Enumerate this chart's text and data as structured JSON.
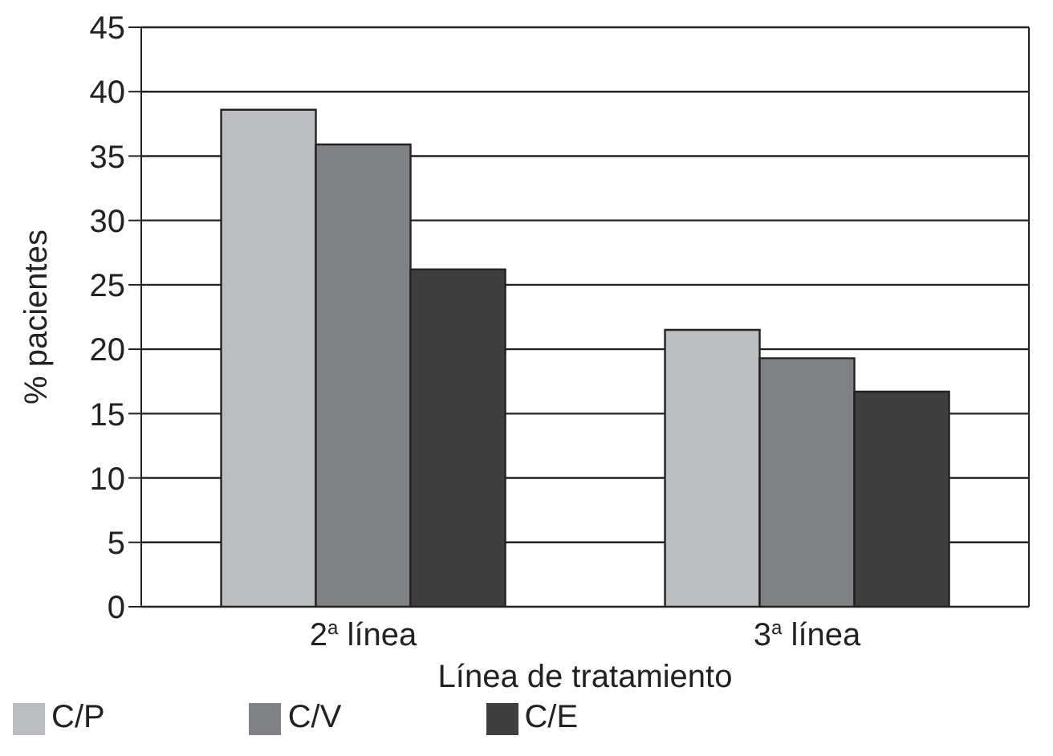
{
  "chart_data": {
    "type": "bar",
    "xlabel": "Línea de tratamiento",
    "ylabel": "% pacientes",
    "categories": [
      "2$^{a}$ línea",
      "3$^{a}$ línea"
    ],
    "series": [
      {
        "name": "C/P",
        "color": "#bcbdc1",
        "values": [
          38.6,
          21.5
        ]
      },
      {
        "name": "C/V",
        "color": "#808185",
        "values": [
          35.9,
          19.3
        ]
      },
      {
        "name": "C/E",
        "color": "#3f3f3f",
        "values": [
          26.2,
          16.7
        ]
      }
    ],
    "ylim": [
      0,
      45
    ],
    "yticks": [
      0,
      5,
      10,
      15,
      20,
      25,
      30,
      35,
      40,
      45
    ],
    "grid": "y",
    "legend": "bottom left"
  }
}
